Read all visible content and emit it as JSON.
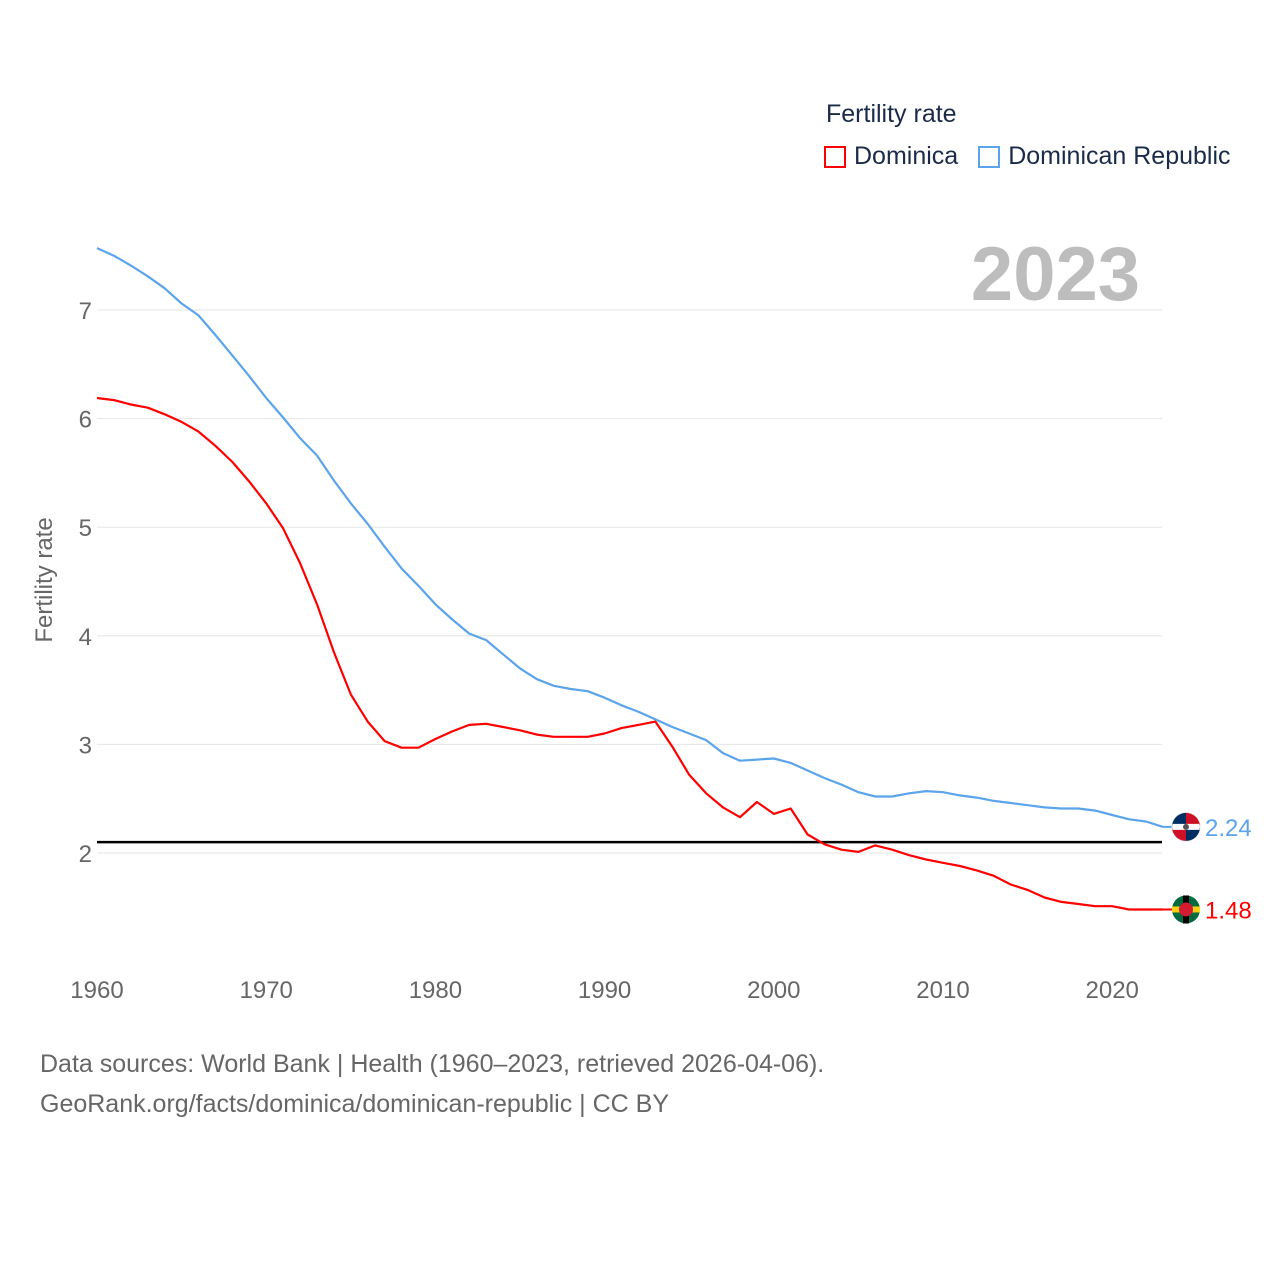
{
  "legend": {
    "title": "Fertility rate",
    "items": [
      {
        "label": "Dominica",
        "color": "#ff0000"
      },
      {
        "label": "Dominican Republic",
        "color": "#5ba4ec"
      }
    ]
  },
  "footer": {
    "line1": "Data sources: World Bank | Health (1960–2023, retrieved 2026-04-06).",
    "line2": "GeoRank.org/facts/dominica/dominican-republic | CC BY"
  },
  "chart_data": {
    "type": "line",
    "title": "Fertility rate",
    "year_label": "2023",
    "xlabel": "",
    "ylabel": "Fertility rate",
    "xlim": [
      1960,
      2023
    ],
    "ylim": [
      1.0,
      7.6
    ],
    "x_ticks": [
      1960,
      1970,
      1980,
      1990,
      2000,
      2010,
      2020
    ],
    "y_ticks": [
      2,
      3,
      4,
      5,
      6,
      7
    ],
    "grid": true,
    "legend_position": "top-right",
    "reference_line": {
      "value": 2.1,
      "color": "#000000"
    },
    "x": [
      1960,
      1961,
      1962,
      1963,
      1964,
      1965,
      1966,
      1967,
      1968,
      1969,
      1970,
      1971,
      1972,
      1973,
      1974,
      1975,
      1976,
      1977,
      1978,
      1979,
      1980,
      1981,
      1982,
      1983,
      1984,
      1985,
      1986,
      1987,
      1988,
      1989,
      1990,
      1991,
      1992,
      1993,
      1994,
      1995,
      1996,
      1997,
      1998,
      1999,
      2000,
      2001,
      2002,
      2003,
      2004,
      2005,
      2006,
      2007,
      2008,
      2009,
      2010,
      2011,
      2012,
      2013,
      2014,
      2015,
      2016,
      2017,
      2018,
      2019,
      2020,
      2021,
      2022,
      2023
    ],
    "series": [
      {
        "name": "Dominica",
        "color": "#ff0000",
        "end_label": "1.48",
        "values": [
          6.19,
          6.17,
          6.13,
          6.1,
          6.04,
          5.97,
          5.88,
          5.75,
          5.6,
          5.42,
          5.22,
          4.99,
          4.67,
          4.29,
          3.85,
          3.46,
          3.21,
          3.03,
          2.97,
          2.97,
          3.05,
          3.12,
          3.18,
          3.19,
          3.16,
          3.13,
          3.09,
          3.07,
          3.07,
          3.07,
          3.1,
          3.15,
          3.18,
          3.21,
          2.98,
          2.72,
          2.55,
          2.42,
          2.33,
          2.47,
          2.36,
          2.41,
          2.17,
          2.08,
          2.03,
          2.01,
          2.07,
          2.03,
          1.98,
          1.94,
          1.91,
          1.88,
          1.84,
          1.79,
          1.71,
          1.66,
          1.59,
          1.55,
          1.53,
          1.51,
          1.51,
          1.48,
          1.48,
          1.48
        ]
      },
      {
        "name": "Dominican Republic",
        "color": "#5ba4ec",
        "end_label": "2.24",
        "values": [
          7.57,
          7.5,
          7.41,
          7.31,
          7.2,
          7.06,
          6.95,
          6.77,
          6.58,
          6.39,
          6.19,
          6.01,
          5.82,
          5.66,
          5.43,
          5.22,
          5.03,
          4.82,
          4.62,
          4.46,
          4.29,
          4.15,
          4.02,
          3.96,
          3.83,
          3.7,
          3.6,
          3.54,
          3.51,
          3.49,
          3.43,
          3.36,
          3.3,
          3.23,
          3.16,
          3.1,
          3.04,
          2.92,
          2.85,
          2.86,
          2.87,
          2.83,
          2.76,
          2.69,
          2.63,
          2.56,
          2.52,
          2.52,
          2.55,
          2.57,
          2.56,
          2.53,
          2.51,
          2.48,
          2.46,
          2.44,
          2.42,
          2.41,
          2.41,
          2.39,
          2.35,
          2.31,
          2.29,
          2.24
        ]
      }
    ]
  }
}
